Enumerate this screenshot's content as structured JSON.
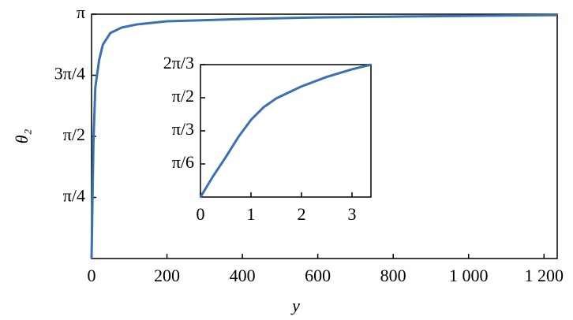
{
  "chart_data": [
    {
      "type": "line",
      "xlabel": "y",
      "ylabel": "θ₂",
      "x": [
        0,
        5,
        10,
        20,
        30,
        50,
        80,
        120,
        200,
        400,
        600,
        800,
        1000,
        1235
      ],
      "series": [
        {
          "color": "#3b6fb6",
          "values": [
            0,
            1.5,
            2.2,
            2.55,
            2.75,
            2.9,
            2.97,
            3.01,
            3.05,
            3.08,
            3.1,
            3.11,
            3.12,
            3.13
          ]
        }
      ],
      "xlim": [
        0,
        1235
      ],
      "ylim": [
        0,
        3.14159
      ],
      "xticks": [
        0,
        200,
        400,
        600,
        800,
        {
          "value": 1000,
          "label": "1 000"
        },
        {
          "value": 1200,
          "label": "1 200"
        }
      ],
      "yticks": [
        {
          "value": 0.7854,
          "label": "π/4"
        },
        {
          "value": 1.5708,
          "label": "π/2"
        },
        {
          "value": 2.3562,
          "label": "3π/4"
        },
        {
          "value": 3.14159,
          "label": "π"
        }
      ]
    },
    {
      "type": "line",
      "x": [
        0,
        0.25,
        0.5,
        0.75,
        1,
        1.25,
        1.5,
        2,
        2.5,
        3,
        3.375
      ],
      "series": [
        {
          "color": "#3b6fb6",
          "values": [
            0,
            0.33,
            0.63,
            0.95,
            1.22,
            1.42,
            1.56,
            1.75,
            1.9,
            2.02,
            2.094
          ]
        }
      ],
      "xlim": [
        0,
        3.375
      ],
      "ylim": [
        0,
        2.094
      ],
      "xticks": [
        0,
        1,
        2,
        3
      ],
      "yticks": [
        {
          "value": 0.5236,
          "label": "π/6"
        },
        {
          "value": 1.0472,
          "label": "π/3"
        },
        {
          "value": 1.5708,
          "label": "π/2"
        },
        {
          "value": 2.094,
          "label": "2π/3"
        }
      ]
    }
  ]
}
